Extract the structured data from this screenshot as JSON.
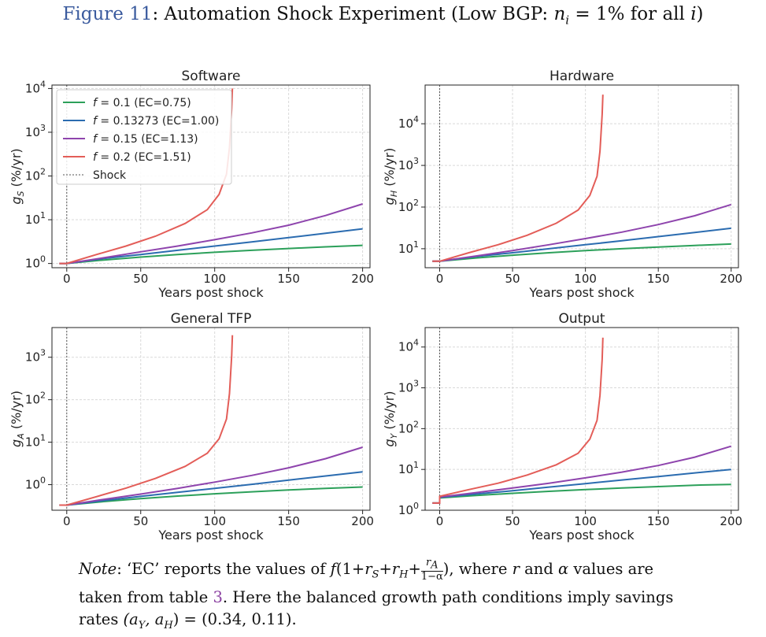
{
  "figure": {
    "label": "Figure 11",
    "title_lead": ": Automation Shock Experiment (Low BGP: ",
    "title_math_var": "n",
    "title_math_sub": "i",
    "title_math_rest": " = 1% for all ",
    "title_math_idx": "i",
    "title_tail": ")"
  },
  "colors": {
    "green": "#2ca05a",
    "blue": "#2b6cb0",
    "purple": "#8e44ad",
    "red": "#e35d58",
    "grid": "#d9d9d9",
    "shock": "#555555"
  },
  "legend_entries": [
    {
      "var": "f",
      "label": " = 0.1 (EC=0.75)",
      "color": "green"
    },
    {
      "var": "f",
      "label": " = 0.13273 (EC=1.00)",
      "color": "blue"
    },
    {
      "var": "f",
      "label": " = 0.15 (EC=1.13)",
      "color": "purple"
    },
    {
      "var": "f",
      "label": " = 0.2 (EC=1.51)",
      "color": "red"
    },
    {
      "var": "",
      "label": "Shock",
      "color": "shock"
    }
  ],
  "chart_data": [
    {
      "type": "line",
      "title": "Software",
      "xlabel": "Years post shock",
      "ylabel_var": "g",
      "ylabel_sub": "S",
      "ylabel_unit": " (%/yr)",
      "y_scale": "log",
      "xlim": [
        -10,
        205
      ],
      "ylim": [
        0.8,
        12000
      ],
      "xticks": [
        0,
        50,
        100,
        150,
        200
      ],
      "yticks": [
        1,
        10,
        100,
        1000,
        10000
      ],
      "grid": true,
      "legend": "top-left",
      "shock_x": 0,
      "series": [
        {
          "color": "green",
          "x": [
            -5,
            0,
            25,
            50,
            75,
            100,
            125,
            150,
            175,
            200
          ],
          "y": [
            1.0,
            1.0,
            1.2,
            1.4,
            1.6,
            1.8,
            2.0,
            2.2,
            2.4,
            2.6
          ]
        },
        {
          "color": "blue",
          "x": [
            -5,
            0,
            25,
            50,
            75,
            100,
            125,
            150,
            175,
            200
          ],
          "y": [
            1.0,
            1.0,
            1.3,
            1.6,
            2.0,
            2.5,
            3.1,
            3.9,
            4.9,
            6.2
          ]
        },
        {
          "color": "purple",
          "x": [
            -5,
            0,
            25,
            50,
            75,
            100,
            125,
            150,
            175,
            200
          ],
          "y": [
            1.0,
            1.0,
            1.35,
            1.85,
            2.5,
            3.5,
            5.0,
            7.5,
            12.5,
            23
          ]
        },
        {
          "color": "red",
          "x": [
            -5,
            0,
            20,
            40,
            60,
            80,
            95,
            103,
            108,
            110,
            111.5,
            112
          ],
          "y": [
            1.0,
            1.0,
            1.6,
            2.5,
            4.2,
            8.2,
            17,
            38,
            110,
            450,
            3500,
            10000
          ]
        }
      ]
    },
    {
      "type": "line",
      "title": "Hardware",
      "xlabel": "Years post shock",
      "ylabel_var": "g",
      "ylabel_sub": "H",
      "ylabel_unit": " (%/yr)",
      "y_scale": "log",
      "xlim": [
        -10,
        205
      ],
      "ylim": [
        3.5,
        85000
      ],
      "xticks": [
        0,
        50,
        100,
        150,
        200
      ],
      "yticks": [
        10,
        100,
        1000,
        10000
      ],
      "grid": true,
      "shock_x": 0,
      "series": [
        {
          "color": "green",
          "x": [
            -5,
            0,
            25,
            50,
            75,
            100,
            125,
            150,
            175,
            200
          ],
          "y": [
            5,
            5,
            6,
            7,
            8,
            9,
            10,
            11,
            12,
            13
          ]
        },
        {
          "color": "blue",
          "x": [
            -5,
            0,
            25,
            50,
            75,
            100,
            125,
            150,
            175,
            200
          ],
          "y": [
            5,
            5,
            6.5,
            8,
            10,
            12.5,
            15.5,
            19.5,
            24.5,
            31
          ]
        },
        {
          "color": "purple",
          "x": [
            -5,
            0,
            25,
            50,
            75,
            100,
            125,
            150,
            175,
            200
          ],
          "y": [
            5,
            5,
            6.7,
            9,
            12.5,
            17.5,
            25,
            38,
            62,
            115
          ]
        },
        {
          "color": "red",
          "x": [
            -5,
            0,
            20,
            40,
            60,
            80,
            95,
            103,
            108,
            110,
            111.5,
            112
          ],
          "y": [
            5,
            5,
            8,
            12.5,
            21,
            41,
            85,
            190,
            550,
            2200,
            17000,
            50000
          ]
        }
      ]
    },
    {
      "type": "line",
      "title": "General TFP",
      "xlabel": "Years post shock",
      "ylabel_var": "g",
      "ylabel_sub": "A",
      "ylabel_unit": " (%/yr)",
      "y_scale": "log",
      "xlim": [
        -10,
        205
      ],
      "ylim": [
        0.25,
        5000
      ],
      "xticks": [
        0,
        50,
        100,
        150,
        200
      ],
      "yticks": [
        1,
        10,
        100,
        1000
      ],
      "grid": true,
      "shock_x": 0,
      "series": [
        {
          "color": "green",
          "x": [
            -5,
            0,
            25,
            50,
            75,
            100,
            125,
            150,
            175,
            200
          ],
          "y": [
            0.33,
            0.33,
            0.4,
            0.47,
            0.54,
            0.61,
            0.68,
            0.75,
            0.82,
            0.88
          ]
        },
        {
          "color": "blue",
          "x": [
            -5,
            0,
            25,
            50,
            75,
            100,
            125,
            150,
            175,
            200
          ],
          "y": [
            0.33,
            0.33,
            0.42,
            0.53,
            0.66,
            0.82,
            1.02,
            1.28,
            1.6,
            2.0
          ]
        },
        {
          "color": "purple",
          "x": [
            -5,
            0,
            25,
            50,
            75,
            100,
            125,
            150,
            175,
            200
          ],
          "y": [
            0.33,
            0.33,
            0.45,
            0.6,
            0.82,
            1.15,
            1.65,
            2.5,
            4.1,
            7.6
          ]
        },
        {
          "color": "red",
          "x": [
            -5,
            0,
            20,
            40,
            60,
            80,
            95,
            103,
            108,
            110,
            111.5,
            112
          ],
          "y": [
            0.33,
            0.33,
            0.52,
            0.83,
            1.4,
            2.7,
            5.5,
            12,
            35,
            140,
            1100,
            3300
          ]
        }
      ]
    },
    {
      "type": "line",
      "title": "Output",
      "xlabel": "Years post shock",
      "ylabel_var": "g",
      "ylabel_sub": "Y",
      "ylabel_unit": " (%/yr)",
      "y_scale": "log",
      "xlim": [
        -10,
        205
      ],
      "ylim": [
        1,
        30000
      ],
      "xticks": [
        0,
        50,
        100,
        150,
        200
      ],
      "yticks": [
        1,
        10,
        100,
        1000,
        10000
      ],
      "grid": true,
      "shock_x": 0,
      "series": [
        {
          "color": "green",
          "x": [
            -5,
            0,
            0.01,
            25,
            50,
            75,
            100,
            125,
            150,
            175,
            200
          ],
          "y": [
            1.5,
            1.5,
            2.0,
            2.3,
            2.6,
            2.9,
            3.2,
            3.5,
            3.8,
            4.1,
            4.3
          ]
        },
        {
          "color": "blue",
          "x": [
            -5,
            0,
            0.01,
            25,
            50,
            75,
            100,
            125,
            150,
            175,
            200
          ],
          "y": [
            1.5,
            1.5,
            2.05,
            2.5,
            3.0,
            3.7,
            4.5,
            5.5,
            6.7,
            8.2,
            10
          ]
        },
        {
          "color": "purple",
          "x": [
            -5,
            0,
            0.01,
            25,
            50,
            75,
            100,
            125,
            150,
            175,
            200
          ],
          "y": [
            1.5,
            1.5,
            2.1,
            2.7,
            3.5,
            4.6,
            6.2,
            8.6,
            12.5,
            20,
            37
          ]
        },
        {
          "color": "red",
          "x": [
            -5,
            0,
            0.01,
            20,
            40,
            60,
            80,
            95,
            103,
            108,
            110,
            111.5,
            112
          ],
          "y": [
            1.5,
            1.5,
            2.2,
            3.2,
            4.6,
            7.3,
            13,
            25,
            55,
            160,
            650,
            5000,
            17000
          ]
        }
      ]
    }
  ],
  "note": {
    "label": "Note",
    "line1_a": ": ‘EC’ reports the values of ",
    "line1_b": ", where ",
    "line1_r": "r",
    "line1_c": " and ",
    "line1_alpha": "α",
    "line1_d": " values are",
    "line2_a": "taken from table ",
    "line2_ref": "3",
    "line2_b": ". Here the balanced growth path conditions imply savings",
    "line3_a": "rates ",
    "line3_math": "(a",
    "line3_sub1": "Y",
    "line3_comma": ", a",
    "line3_sub2": "H",
    "line3_b": ") = (0.34, 0.11).",
    "formula_f": "f",
    "formula_open": "(1+",
    "formula_rs": "r",
    "formula_rs_sub": "S",
    "formula_plus": "+",
    "formula_rh": "r",
    "formula_rh_sub": "H",
    "formula_plus2": "+",
    "formula_num": "r",
    "formula_num_sub": "A",
    "formula_den": "1−α",
    "formula_close": ")"
  }
}
